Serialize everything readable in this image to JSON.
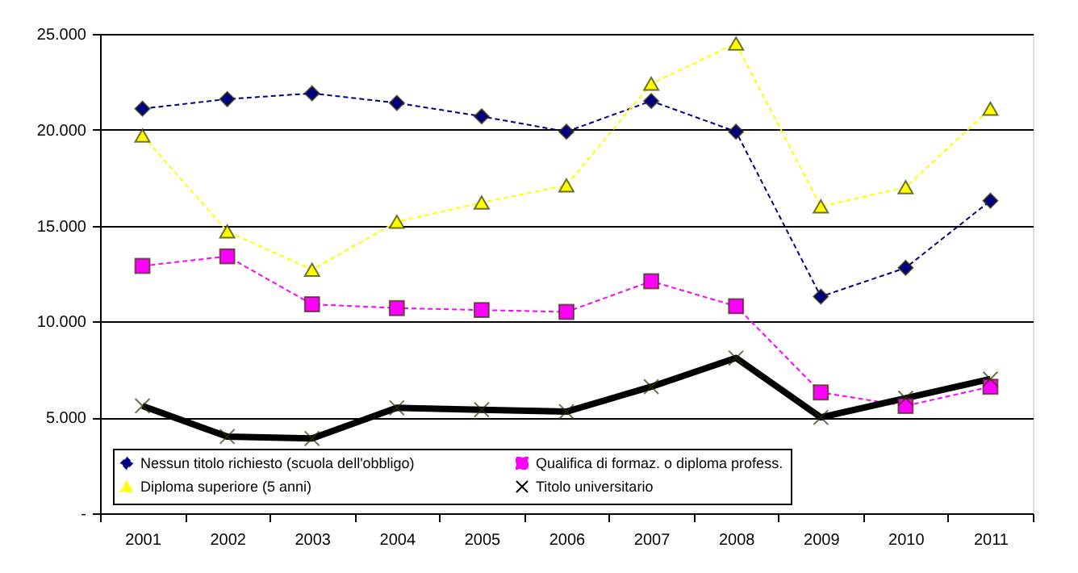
{
  "chart_data": {
    "type": "line",
    "categories": [
      "2001",
      "2002",
      "2003",
      "2004",
      "2005",
      "2006",
      "2007",
      "2008",
      "2009",
      "2010",
      "2011"
    ],
    "series": [
      {
        "name": "Nessun titolo richiesto (scuola dell'obbligo)",
        "color": "#000080",
        "marker": "diamond",
        "line_style": "dashed",
        "values": [
          21100,
          21600,
          21900,
          21400,
          20700,
          19900,
          21500,
          19900,
          11300,
          12800,
          16300
        ]
      },
      {
        "name": "Qualifica di formaz. o diploma profess.",
        "color": "#ff00ff",
        "marker": "square",
        "line_style": "dashed",
        "values": [
          12900,
          13400,
          10900,
          10700,
          10600,
          10500,
          12100,
          10800,
          6300,
          5600,
          6600
        ]
      },
      {
        "name": "Diploma superiore (5 anni)",
        "color": "#ffff00",
        "marker": "triangle",
        "line_style": "dashed",
        "values": [
          19700,
          14700,
          12700,
          15200,
          16200,
          17100,
          22400,
          24500,
          16000,
          17000,
          21100
        ]
      },
      {
        "name": "Titolo universitario",
        "color": "#000000",
        "marker": "cross",
        "line_style": "solid",
        "values": [
          5600,
          4000,
          3900,
          5500,
          5400,
          5300,
          6600,
          8100,
          5000,
          6000,
          7000
        ]
      }
    ],
    "ylim": [
      0,
      25000
    ],
    "yticks": [
      {
        "value": 0,
        "label": "-"
      },
      {
        "value": 5000,
        "label": "5.000"
      },
      {
        "value": 10000,
        "label": "10.000"
      },
      {
        "value": 15000,
        "label": "15.000"
      },
      {
        "value": 20000,
        "label": "20.000"
      },
      {
        "value": 25000,
        "label": "25.000"
      }
    ],
    "grid": "y",
    "legend": "bottom"
  }
}
